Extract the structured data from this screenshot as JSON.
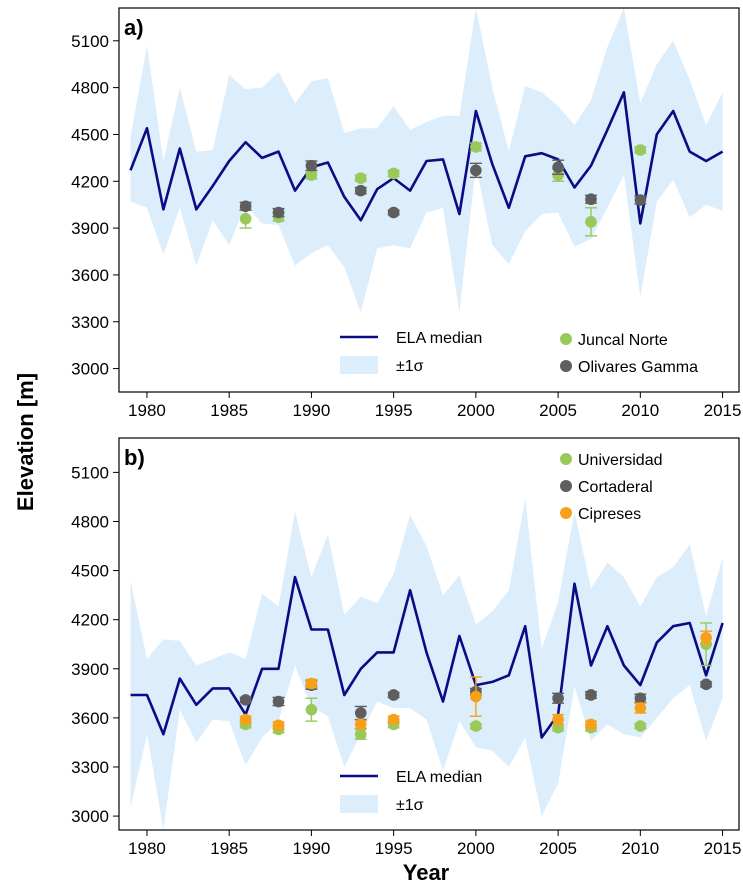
{
  "figure": {
    "ylabel": "Elevation [m]",
    "xlabel": "Year"
  },
  "chart_data": [
    {
      "type": "line",
      "panel_label": "a)",
      "xlim": [
        1978.3,
        2016.0
      ],
      "ylim": [
        2850,
        5310
      ],
      "xticks": [
        1980,
        1985,
        1990,
        1995,
        2000,
        2005,
        2010,
        2015
      ],
      "yticks": [
        3000,
        3300,
        3600,
        3900,
        4200,
        4500,
        4800,
        5100
      ],
      "grid": false,
      "legend_placement": "bottom",
      "colors": {
        "line": "#0b0c85",
        "band": "#dcedfb",
        "green": "#98c95a",
        "grey": "#5e5e5e",
        "orange": "#f7a11a"
      },
      "x": [
        1979,
        1980,
        1981,
        1982,
        1983,
        1984,
        1985,
        1986,
        1987,
        1988,
        1989,
        1990,
        1991,
        1992,
        1993,
        1994,
        1995,
        1996,
        1997,
        1998,
        1999,
        2000,
        2001,
        2002,
        2003,
        2004,
        2005,
        2006,
        2007,
        2008,
        2009,
        2010,
        2011,
        2012,
        2013,
        2014,
        2015
      ],
      "median": [
        4270,
        4540,
        4020,
        4410,
        4020,
        4170,
        4330,
        4450,
        4350,
        4390,
        4140,
        4290,
        4320,
        4100,
        3950,
        4150,
        4220,
        4140,
        4330,
        4340,
        3990,
        4650,
        4310,
        4030,
        4360,
        4380,
        4340,
        4160,
        4300,
        4530,
        4770,
        3930,
        4500,
        4650,
        4390,
        4330,
        4390
      ],
      "upper": [
        4480,
        5070,
        4330,
        4800,
        4390,
        4400,
        4880,
        4790,
        4800,
        4900,
        4700,
        4840,
        4860,
        4510,
        4540,
        4540,
        4680,
        4530,
        4580,
        4620,
        4620,
        5310,
        4800,
        4390,
        4810,
        4770,
        4680,
        4560,
        4720,
        5060,
        5310,
        4700,
        4950,
        5100,
        4850,
        4560,
        4770
      ],
      "lower": [
        4070,
        4030,
        3730,
        4030,
        3660,
        3950,
        3790,
        4050,
        3930,
        3920,
        3660,
        3740,
        3790,
        3650,
        3360,
        3770,
        3790,
        3770,
        4000,
        4030,
        3360,
        4300,
        3790,
        3670,
        3880,
        3990,
        4000,
        3780,
        3830,
        4030,
        4240,
        3460,
        4070,
        4210,
        3970,
        4050,
        4010
      ],
      "series": [
        {
          "name": "Juncal Norte",
          "color": "green",
          "points": [
            {
              "x": 1986,
              "y": 3960,
              "err": 60
            },
            {
              "x": 1988,
              "y": 3970,
              "err": 25
            },
            {
              "x": 1990,
              "y": 4240,
              "err": 25
            },
            {
              "x": 1993,
              "y": 4220,
              "err": 20
            },
            {
              "x": 1995,
              "y": 4250,
              "err": 20
            },
            {
              "x": 2000,
              "y": 4420,
              "err": 25
            },
            {
              "x": 2005,
              "y": 4240,
              "err": 40
            },
            {
              "x": 2007,
              "y": 3940,
              "err": 90
            },
            {
              "x": 2010,
              "y": 4400,
              "err": 20
            }
          ]
        },
        {
          "name": "Olivares Gamma",
          "color": "grey",
          "points": [
            {
              "x": 1986,
              "y": 4040,
              "err": 25
            },
            {
              "x": 1988,
              "y": 4000,
              "err": 25
            },
            {
              "x": 1990,
              "y": 4300,
              "err": 30
            },
            {
              "x": 1993,
              "y": 4140,
              "err": 20
            },
            {
              "x": 1995,
              "y": 4000,
              "err": 15
            },
            {
              "x": 2000,
              "y": 4270,
              "err": 45
            },
            {
              "x": 2005,
              "y": 4290,
              "err": 45
            },
            {
              "x": 2007,
              "y": 4085,
              "err": 25
            },
            {
              "x": 2010,
              "y": 4080,
              "err": 25
            }
          ]
        }
      ],
      "legend": {
        "median_label": "ELA median",
        "band_label": "±1σ"
      }
    },
    {
      "type": "line",
      "panel_label": "b)",
      "xlim": [
        1978.3,
        2016.0
      ],
      "ylim": [
        2915,
        5310
      ],
      "xticks": [
        1980,
        1985,
        1990,
        1995,
        2000,
        2005,
        2010,
        2015
      ],
      "yticks": [
        3000,
        3300,
        3600,
        3900,
        4200,
        4500,
        4800,
        5100
      ],
      "grid": false,
      "legend_placement": "bottom",
      "colors": {
        "line": "#0b0c85",
        "band": "#dcedfb",
        "green": "#98c95a",
        "grey": "#5e5e5e",
        "orange": "#f7a11a"
      },
      "x": [
        1979,
        1980,
        1981,
        1982,
        1983,
        1984,
        1985,
        1986,
        1987,
        1988,
        1989,
        1990,
        1991,
        1992,
        1993,
        1994,
        1995,
        1996,
        1997,
        1998,
        1999,
        2000,
        2001,
        2002,
        2003,
        2004,
        2005,
        2006,
        2007,
        2008,
        2009,
        2010,
        2011,
        2012,
        2013,
        2014,
        2015
      ],
      "median": [
        3740,
        3740,
        3500,
        3840,
        3680,
        3780,
        3780,
        3620,
        3900,
        3900,
        4460,
        4140,
        4140,
        3740,
        3900,
        4000,
        4000,
        4380,
        4000,
        3700,
        4100,
        3800,
        3820,
        3860,
        4160,
        3480,
        3620,
        4420,
        3920,
        4160,
        3920,
        3800,
        4060,
        4160,
        4180,
        3860,
        4180
      ],
      "upper": [
        4440,
        3960,
        4080,
        4070,
        3920,
        3960,
        4000,
        3960,
        4360,
        4280,
        4860,
        4460,
        4720,
        4230,
        4340,
        4300,
        4480,
        4840,
        4650,
        4350,
        4470,
        4170,
        4250,
        4380,
        4940,
        4020,
        4310,
        4860,
        4390,
        4550,
        4460,
        4280,
        4460,
        4520,
        4660,
        4220,
        4580
      ],
      "lower": [
        3050,
        3500,
        2920,
        3650,
        3450,
        3590,
        3580,
        3310,
        3480,
        3580,
        3920,
        3670,
        3610,
        3300,
        3500,
        3700,
        3660,
        3660,
        3590,
        3280,
        3580,
        3420,
        3400,
        3300,
        3480,
        3000,
        3200,
        3790,
        3460,
        3560,
        3500,
        3480,
        3600,
        3720,
        3800,
        3460,
        3720
      ],
      "series": [
        {
          "name": "Universidad",
          "color": "green",
          "points": [
            {
              "x": 1986,
              "y": 3560,
              "err": 20
            },
            {
              "x": 1988,
              "y": 3530,
              "err": 20
            },
            {
              "x": 1990,
              "y": 3650,
              "err": 70
            },
            {
              "x": 1993,
              "y": 3500,
              "err": 30
            },
            {
              "x": 1995,
              "y": 3560,
              "err": 20
            },
            {
              "x": 2000,
              "y": 3550,
              "err": 15
            },
            {
              "x": 2005,
              "y": 3540,
              "err": 20
            },
            {
              "x": 2007,
              "y": 3540,
              "err": 20
            },
            {
              "x": 2010,
              "y": 3550,
              "err": 15
            },
            {
              "x": 2014,
              "y": 4050,
              "err": 130
            }
          ]
        },
        {
          "name": "Cortaderal",
          "color": "grey",
          "points": [
            {
              "x": 1986,
              "y": 3710,
              "err": 15
            },
            {
              "x": 1988,
              "y": 3700,
              "err": 25
            },
            {
              "x": 1990,
              "y": 3800,
              "err": 25
            },
            {
              "x": 1993,
              "y": 3630,
              "err": 40
            },
            {
              "x": 1995,
              "y": 3740,
              "err": 15
            },
            {
              "x": 2000,
              "y": 3760,
              "err": 20
            },
            {
              "x": 2005,
              "y": 3720,
              "err": 30
            },
            {
              "x": 2007,
              "y": 3740,
              "err": 20
            },
            {
              "x": 2010,
              "y": 3720,
              "err": 25
            },
            {
              "x": 2014,
              "y": 3805,
              "err": 15
            }
          ]
        },
        {
          "name": "Cipreses",
          "color": "orange",
          "points": [
            {
              "x": 1986,
              "y": 3590,
              "err": 20
            },
            {
              "x": 1988,
              "y": 3555,
              "err": 20
            },
            {
              "x": 1990,
              "y": 3810,
              "err": 25
            },
            {
              "x": 1993,
              "y": 3560,
              "err": 25
            },
            {
              "x": 1995,
              "y": 3590,
              "err": 20
            },
            {
              "x": 2000,
              "y": 3730,
              "err": 120
            },
            {
              "x": 2005,
              "y": 3590,
              "err": 30
            },
            {
              "x": 2007,
              "y": 3560,
              "err": 20
            },
            {
              "x": 2010,
              "y": 3660,
              "err": 30
            },
            {
              "x": 2014,
              "y": 4090,
              "err": 40
            }
          ]
        }
      ],
      "legend": {
        "median_label": "ELA median",
        "band_label": "±1σ"
      }
    }
  ]
}
